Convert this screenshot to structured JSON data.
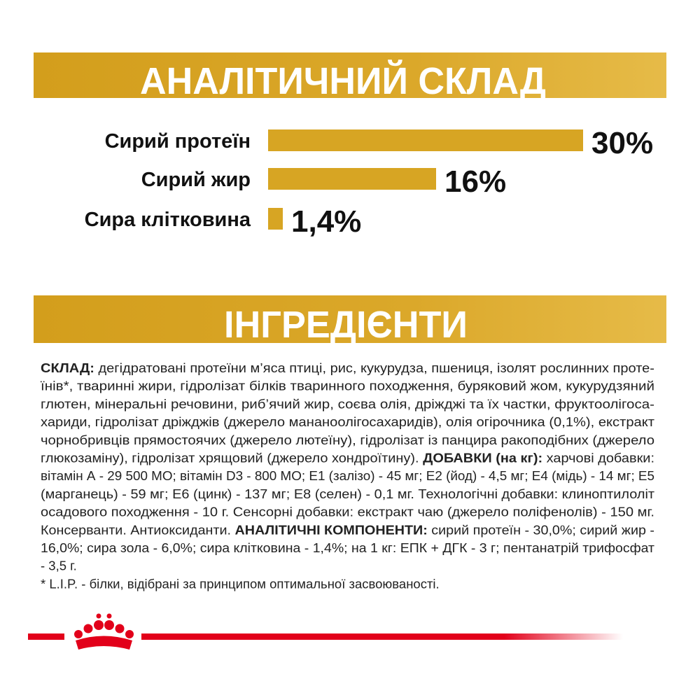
{
  "headings": {
    "analysis": "АНАЛІТИЧНИЙ СКЛАД",
    "ingredients": "ІНГРЕДІЄНТИ"
  },
  "chart_data": {
    "type": "bar",
    "categories": [
      "Сирий протеїн",
      "Сирий жир",
      "Сира клітковина"
    ],
    "values": [
      30,
      16,
      1.4
    ],
    "value_labels": [
      "30%",
      "16%",
      "1,4%"
    ],
    "color": "#d7a523"
  },
  "ingredients": {
    "lines": [
      [
        {
          "text": "СКЛАД:",
          "bold": true
        },
        {
          "text": " дегідратовані протеїни м’яса птиці, рис, кукурудза, пшениця, ізолят рослинних проте-",
          "bold": false
        }
      ],
      [
        {
          "text": "їнів*, тваринні жири, гідролізат білків тваринного походження, буряковий жом, кукурудзяний",
          "bold": false
        }
      ],
      [
        {
          "text": "глютен, мінеральні речовини, риб’ячий жир, соєва олія, дріжджі та їх частки, фруктоолігоса-",
          "bold": false
        }
      ],
      [
        {
          "text": "хариди, гідролізат дріжджів (джерело манaноолігосахаридів), олія огірочника (0,1%), екстракт",
          "bold": false
        }
      ],
      [
        {
          "text": "чорнобривців прямостоячих (джерело лютеїну), гідролізат із панцира ракоподібних (джерело",
          "bold": false
        }
      ],
      [
        {
          "text": "глюкозаміну), гідролізат хрящовий (джерело хондроїтину). ",
          "bold": false
        },
        {
          "text": "ДОБАВКИ (на кг):",
          "bold": true
        },
        {
          "text": " харчові добавки:",
          "bold": false
        }
      ],
      [
        {
          "text": "вітамін А - 29 500 МО; вітамін D3 - 800 МО; Е1 (залізо) - 45 мг; Е2 (йод) - 4,5 мг; Е4 (мідь) - 14 мг; Е5",
          "bold": false
        }
      ],
      [
        {
          "text": "(марганець) - 59 мг; Е6 (цинк) - 137 мг; Е8 (селен) - 0,1 мг. Технологічні добавки: клиноптилоліт",
          "bold": false
        }
      ],
      [
        {
          "text": "осадового походження - 10 г. Сенсорні добавки: екстракт чаю (джерело поліфенолів) - 150 мг.",
          "bold": false
        }
      ],
      [
        {
          "text": "Консерванти. Антиоксиданти. ",
          "bold": false
        },
        {
          "text": "АНАЛІТИЧНІ КОМПОНЕНТИ:",
          "bold": true
        },
        {
          "text": " сирий протеїн - 30,0%; сирий жир -",
          "bold": false
        }
      ],
      [
        {
          "text": "16,0%; сира зола - 6,0%; сира клітковина - 1,4%; на 1 кг: ЕПК + ДГК - 3 г; пентанатрій трифосфат",
          "bold": false
        }
      ],
      [
        {
          "text": "- 3,5 г.",
          "bold": false
        }
      ]
    ],
    "footnote": "* L.I.P. - білки, відібрані за принципом оптимальної засвоюваності."
  }
}
